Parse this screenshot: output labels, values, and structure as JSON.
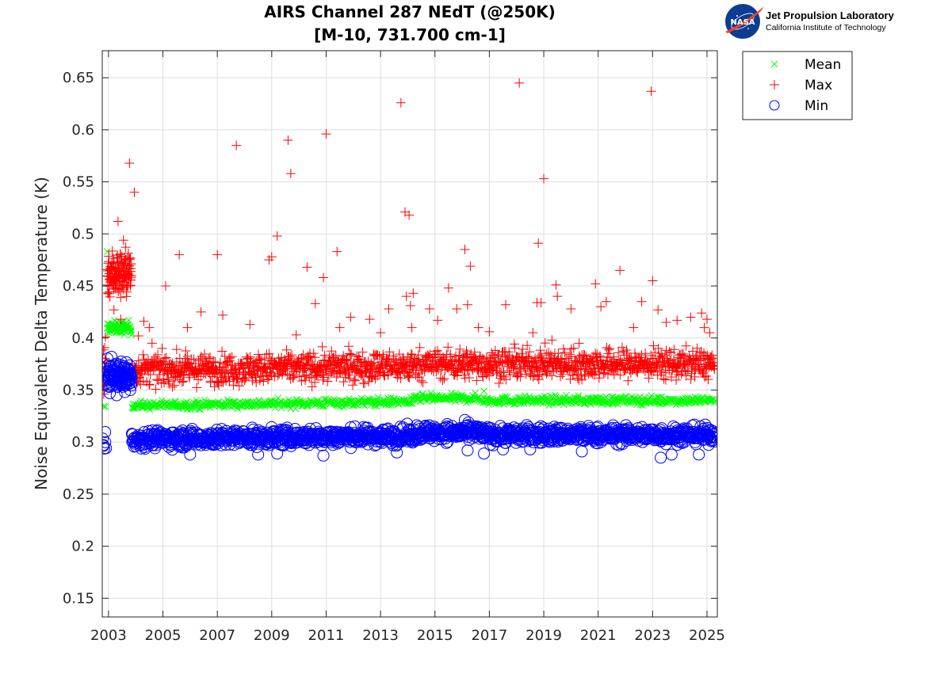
{
  "chart_data": {
    "type": "scatter",
    "title": [
      "AIRS Channel 287 NEdT (@250K)",
      "[M-10, 731.700 cm-1]"
    ],
    "xlabel": "",
    "ylabel": "Noise Equivalent Delta Temperature (K)",
    "xlim": [
      2002.77,
      2025.38
    ],
    "ylim": [
      0.132,
      0.676
    ],
    "xticks": [
      2003,
      2005,
      2007,
      2009,
      2011,
      2013,
      2015,
      2017,
      2019,
      2021,
      2023,
      2025
    ],
    "xtick_labels": [
      "2003",
      "2005",
      "2007",
      "2009",
      "2011",
      "2013",
      "2015",
      "2017",
      "2019",
      "2021",
      "2023",
      "2025"
    ],
    "yticks": [
      0.15,
      0.2,
      0.25,
      0.3,
      0.35,
      0.4,
      0.45,
      0.5,
      0.55,
      0.6,
      0.65
    ],
    "ytick_labels": [
      "0.15",
      "0.2",
      "0.25",
      "0.3",
      "0.35",
      "0.4",
      "0.45",
      "0.5",
      "0.55",
      "0.6",
      "0.65"
    ],
    "grid": true,
    "legend": {
      "position": "outside-top-right",
      "entries": [
        {
          "name": "Mean",
          "marker": "x",
          "color": "#00ff00"
        },
        {
          "name": "Max",
          "marker": "+",
          "color": "#ff0000"
        },
        {
          "name": "Min",
          "marker": "o",
          "color": "#0000ff"
        }
      ]
    },
    "series": [
      {
        "name": "Mean",
        "marker": "x",
        "color": "#00ff00",
        "segments": [
          {
            "x_start": 2002.78,
            "x_end": 2002.9,
            "center": 0.331,
            "spread": 0.003,
            "density": 14
          },
          {
            "x_start": 2002.95,
            "x_end": 2003.85,
            "center": 0.41,
            "spread": 0.003,
            "density": 80
          },
          {
            "x_start": 2003.85,
            "x_end": 2014.25,
            "center_start": 0.335,
            "center_end": 0.339,
            "spread": 0.002,
            "density": 40
          },
          {
            "x_start": 2014.25,
            "x_end": 2016.7,
            "center": 0.342,
            "spread": 0.002,
            "density": 40
          },
          {
            "x_start": 2016.7,
            "x_end": 2025.3,
            "center": 0.34,
            "spread": 0.002,
            "density": 40
          }
        ],
        "outliers": [
          [
            2002.95,
            0.483
          ],
          [
            2016.8,
            0.349
          ]
        ]
      },
      {
        "name": "Max",
        "marker": "+",
        "color": "#ff0000",
        "segments": [
          {
            "x_start": 2002.78,
            "x_end": 2002.92,
            "center": 0.375,
            "spread": 0.018,
            "density": 90
          },
          {
            "x_start": 2002.95,
            "x_end": 2003.85,
            "center": 0.462,
            "spread": 0.011,
            "density": 160
          },
          {
            "x_start": 2003.85,
            "x_end": 2014.25,
            "center_start": 0.369,
            "center_end": 0.373,
            "spread": 0.007,
            "density": 70
          },
          {
            "x_start": 2014.25,
            "x_end": 2025.3,
            "center": 0.375,
            "spread": 0.007,
            "density": 70
          }
        ],
        "outliers": [
          [
            2003.35,
            0.512
          ],
          [
            2003.55,
            0.494
          ],
          [
            2003.77,
            0.568
          ],
          [
            2003.95,
            0.54
          ],
          [
            2003.2,
            0.427
          ],
          [
            2003.45,
            0.418
          ],
          [
            2004.1,
            0.402
          ],
          [
            2004.3,
            0.416
          ],
          [
            2004.5,
            0.41
          ],
          [
            2004.6,
            0.395
          ],
          [
            2005.1,
            0.45
          ],
          [
            2005.6,
            0.48
          ],
          [
            2005.9,
            0.41
          ],
          [
            2006.4,
            0.425
          ],
          [
            2007.0,
            0.48
          ],
          [
            2007.2,
            0.422
          ],
          [
            2007.7,
            0.585
          ],
          [
            2008.2,
            0.413
          ],
          [
            2008.9,
            0.475
          ],
          [
            2009.0,
            0.478
          ],
          [
            2009.2,
            0.498
          ],
          [
            2009.6,
            0.59
          ],
          [
            2009.7,
            0.558
          ],
          [
            2009.9,
            0.403
          ],
          [
            2010.3,
            0.468
          ],
          [
            2010.6,
            0.433
          ],
          [
            2010.9,
            0.458
          ],
          [
            2011.0,
            0.596
          ],
          [
            2011.4,
            0.483
          ],
          [
            2011.5,
            0.41
          ],
          [
            2011.9,
            0.42
          ],
          [
            2012.6,
            0.418
          ],
          [
            2013.0,
            0.405
          ],
          [
            2013.3,
            0.428
          ],
          [
            2013.75,
            0.626
          ],
          [
            2013.9,
            0.521
          ],
          [
            2014.05,
            0.518
          ],
          [
            2013.95,
            0.44
          ],
          [
            2014.1,
            0.431
          ],
          [
            2014.2,
            0.443
          ],
          [
            2014.15,
            0.41
          ],
          [
            2014.8,
            0.428
          ],
          [
            2015.1,
            0.417
          ],
          [
            2015.5,
            0.448
          ],
          [
            2015.8,
            0.428
          ],
          [
            2016.1,
            0.485
          ],
          [
            2016.3,
            0.469
          ],
          [
            2016.2,
            0.432
          ],
          [
            2016.6,
            0.41
          ],
          [
            2017.0,
            0.406
          ],
          [
            2017.6,
            0.432
          ],
          [
            2018.1,
            0.645
          ],
          [
            2018.6,
            0.405
          ],
          [
            2018.8,
            0.491
          ],
          [
            2018.75,
            0.434
          ],
          [
            2019.0,
            0.553
          ],
          [
            2018.9,
            0.434
          ],
          [
            2019.3,
            0.398
          ],
          [
            2019.45,
            0.451
          ],
          [
            2019.5,
            0.44
          ],
          [
            2020.0,
            0.428
          ],
          [
            2020.3,
            0.395
          ],
          [
            2020.9,
            0.452
          ],
          [
            2021.1,
            0.43
          ],
          [
            2021.3,
            0.435
          ],
          [
            2021.8,
            0.465
          ],
          [
            2022.3,
            0.41
          ],
          [
            2022.6,
            0.435
          ],
          [
            2022.95,
            0.637
          ],
          [
            2023.0,
            0.455
          ],
          [
            2023.2,
            0.427
          ],
          [
            2023.5,
            0.415
          ],
          [
            2023.9,
            0.417
          ],
          [
            2024.4,
            0.42
          ],
          [
            2024.8,
            0.424
          ],
          [
            2025.0,
            0.418
          ],
          [
            2024.9,
            0.41
          ],
          [
            2025.1,
            0.405
          ],
          [
            2020.4,
            0.36
          ]
        ]
      },
      {
        "name": "Min",
        "marker": "o",
        "color": "#0000ff",
        "segments": [
          {
            "x_start": 2002.78,
            "x_end": 2002.92,
            "center": 0.298,
            "spread": 0.005,
            "density": 50
          },
          {
            "x_start": 2002.95,
            "x_end": 2003.85,
            "center": 0.364,
            "spread": 0.006,
            "density": 140
          },
          {
            "x_start": 2003.85,
            "x_end": 2014.25,
            "center_start": 0.303,
            "center_end": 0.306,
            "spread": 0.004,
            "density": 70
          },
          {
            "x_start": 2014.25,
            "x_end": 2016.7,
            "center": 0.309,
            "spread": 0.004,
            "density": 70
          },
          {
            "x_start": 2016.7,
            "x_end": 2025.3,
            "center": 0.307,
            "spread": 0.004,
            "density": 70
          }
        ],
        "outliers": [
          [
            2003.05,
            0.347
          ],
          [
            2003.3,
            0.345
          ],
          [
            2003.6,
            0.348
          ],
          [
            2003.8,
            0.35
          ],
          [
            2006.0,
            0.288
          ],
          [
            2008.5,
            0.288
          ],
          [
            2009.2,
            0.289
          ],
          [
            2010.9,
            0.287
          ],
          [
            2013.6,
            0.29
          ],
          [
            2016.8,
            0.289
          ],
          [
            2016.2,
            0.292
          ],
          [
            2018.5,
            0.293
          ],
          [
            2023.3,
            0.285
          ],
          [
            2023.7,
            0.288
          ],
          [
            2024.7,
            0.288
          ],
          [
            2017.5,
            0.293
          ],
          [
            2020.4,
            0.291
          ]
        ]
      }
    ]
  },
  "logo": {
    "badge_text": "NASA",
    "title": "Jet Propulsion Laboratory",
    "subtitle": "California Institute of Technology"
  }
}
